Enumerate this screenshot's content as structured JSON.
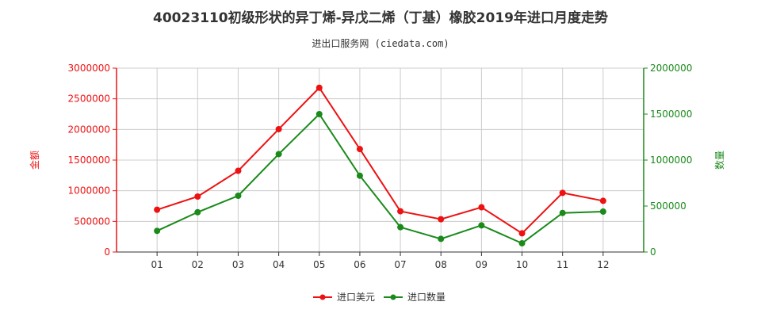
{
  "chart_data": {
    "type": "line",
    "title": "40023110初级形状的异丁烯-异戊二烯（丁基）橡胶2019年进口月度走势",
    "subtitle": "进出口服务网 (ciedata.com)",
    "categories": [
      "01",
      "02",
      "03",
      "04",
      "05",
      "06",
      "07",
      "08",
      "09",
      "10",
      "11",
      "12"
    ],
    "y_left_label": "金额",
    "y_right_label": "数量",
    "y_left_ticks": [
      "0",
      "500000",
      "1000000",
      "1500000",
      "2000000",
      "2500000",
      "3000000"
    ],
    "y_right_ticks": [
      "0",
      "500000",
      "1000000",
      "1500000",
      "2000000"
    ],
    "y_left_range": [
      0,
      3000000
    ],
    "y_right_range": [
      0,
      2000000
    ],
    "grid": true,
    "legend_position": "bottom",
    "series": [
      {
        "name": "进口美元",
        "axis": "left",
        "color": "#ee1111",
        "values": [
          690000,
          905000,
          1325000,
          2005000,
          2680000,
          1680000,
          665000,
          535000,
          730000,
          305000,
          965000,
          835000
        ]
      },
      {
        "name": "进口数量",
        "axis": "right",
        "color": "#1a8a1a",
        "values": [
          230000,
          433000,
          612000,
          1065000,
          1500000,
          830000,
          270000,
          143000,
          290000,
          95000,
          425000,
          440000
        ]
      }
    ]
  },
  "colors": {
    "left_axis": "#ee1111",
    "right_axis": "#1a8a1a",
    "grid": "#cccccc",
    "watermark": "#e6e6e6"
  }
}
